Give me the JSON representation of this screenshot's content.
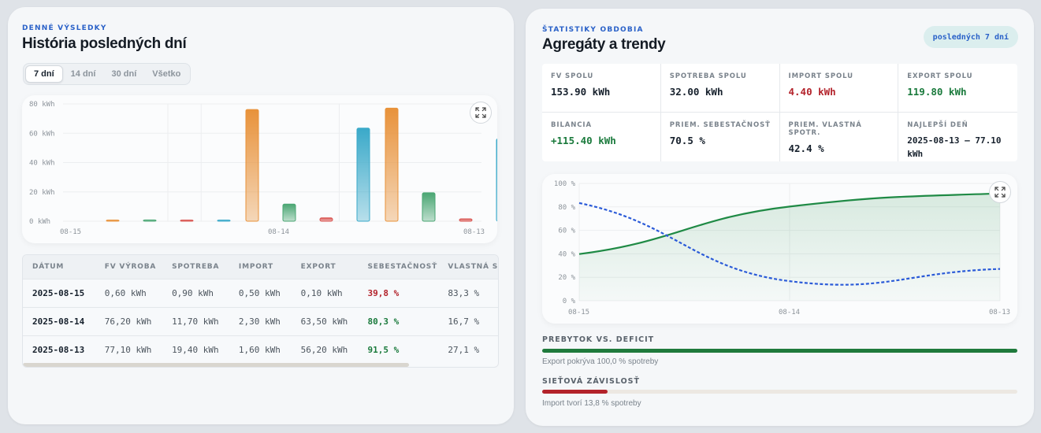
{
  "left": {
    "eyebrow": "DENNÉ VÝSLEDKY",
    "title": "História posledných dní",
    "tabs": [
      "7 dní",
      "14 dní",
      "30 dní",
      "Všetko"
    ],
    "active_tab": "7 dní",
    "chart_data": {
      "type": "bar",
      "categories": [
        "08-15",
        "08-14",
        "08-13"
      ],
      "y_ticks": [
        "80 kWh",
        "60 kWh",
        "40 kWh",
        "20 kWh",
        "0 kWh"
      ],
      "ylim": [
        0,
        80
      ],
      "series": [
        {
          "values": [
            0.6,
            76.2,
            77.1
          ],
          "color": "#e8923a"
        },
        {
          "values": [
            0.9,
            11.7,
            19.4
          ],
          "color": "#4aa673"
        },
        {
          "values": [
            0.5,
            2.3,
            1.6
          ],
          "color": "#d9534f"
        },
        {
          "values": [
            0.1,
            63.5,
            56.2
          ],
          "color": "#3aa9c9"
        }
      ]
    },
    "table": {
      "headers": [
        "DÁTUM",
        "FV VÝROBA",
        "SPOTREBA",
        "IMPORT",
        "EXPORT",
        "SEBESTAČNOSŤ",
        "VLASTNÁ S"
      ],
      "rows": [
        {
          "date": "2025-08-15",
          "pv": "0,60 kWh",
          "cons": "0,90 kWh",
          "imp": "0,50 kWh",
          "exp": "0,10 kWh",
          "self": "39,8 %",
          "self_color": "#b3232b",
          "own": "83,3 %"
        },
        {
          "date": "2025-08-14",
          "pv": "76,20 kWh",
          "cons": "11,70 kWh",
          "imp": "2,30 kWh",
          "exp": "63,50 kWh",
          "self": "80,3 %",
          "self_color": "#1a7a3c",
          "own": "16,7 %"
        },
        {
          "date": "2025-08-13",
          "pv": "77,10 kWh",
          "cons": "19,40 kWh",
          "imp": "1,60 kWh",
          "exp": "56,20 kWh",
          "self": "91,5 %",
          "self_color": "#1a7a3c",
          "own": "27,1 %"
        }
      ]
    }
  },
  "right": {
    "eyebrow": "ŠTATISTIKY OBDOBIA",
    "title": "Agregáty a trendy",
    "pill": "posledných 7 dní",
    "stats": [
      {
        "label": "FV SPOLU",
        "value": "153.90 kWh",
        "tone": ""
      },
      {
        "label": "SPOTREBA SPOLU",
        "value": "32.00 kWh",
        "tone": ""
      },
      {
        "label": "IMPORT SPOLU",
        "value": "4.40 kWh",
        "tone": "red"
      },
      {
        "label": "EXPORT SPOLU",
        "value": "119.80 kWh",
        "tone": "green"
      },
      {
        "label": "BILANCIA",
        "value": "+115.40 kWh",
        "tone": "green"
      },
      {
        "label": "PRIEM. SEBESTAČNOSŤ",
        "value": "70.5 %",
        "tone": ""
      },
      {
        "label": "PRIEM. VLASTNÁ SPOTR.",
        "value": "42.4 %",
        "tone": ""
      },
      {
        "label": "NAJLEPŠÍ DEŇ",
        "value": "2025-08-13 – 77.10 kWh",
        "tone": ""
      }
    ],
    "chart_data": {
      "type": "line",
      "x": [
        "08-15",
        "08-14",
        "08-13"
      ],
      "y_ticks": [
        "100 %",
        "80 %",
        "60 %",
        "40 %",
        "20 %",
        "0 %"
      ],
      "ylim": [
        0,
        100
      ],
      "series": [
        {
          "values": [
            39.8,
            80.3,
            91.5
          ],
          "color": "#1f8a45",
          "style": "solid",
          "fill": true
        },
        {
          "values": [
            83.3,
            16.7,
            27.1
          ],
          "color": "#2b5bd8",
          "style": "dashed"
        }
      ]
    },
    "surplus": {
      "heading": "PREBYTOK VS. DEFICIT",
      "note": "Export pokrýva 100,0 % spotreby",
      "fraction": 1.0,
      "color": "#1f7a3c"
    },
    "grid": {
      "heading": "SIEŤOVÁ ZÁVISLOSŤ",
      "note": "Import tvorí 13,8 % spotreby",
      "fraction": 0.138,
      "color": "#b3232b"
    }
  }
}
